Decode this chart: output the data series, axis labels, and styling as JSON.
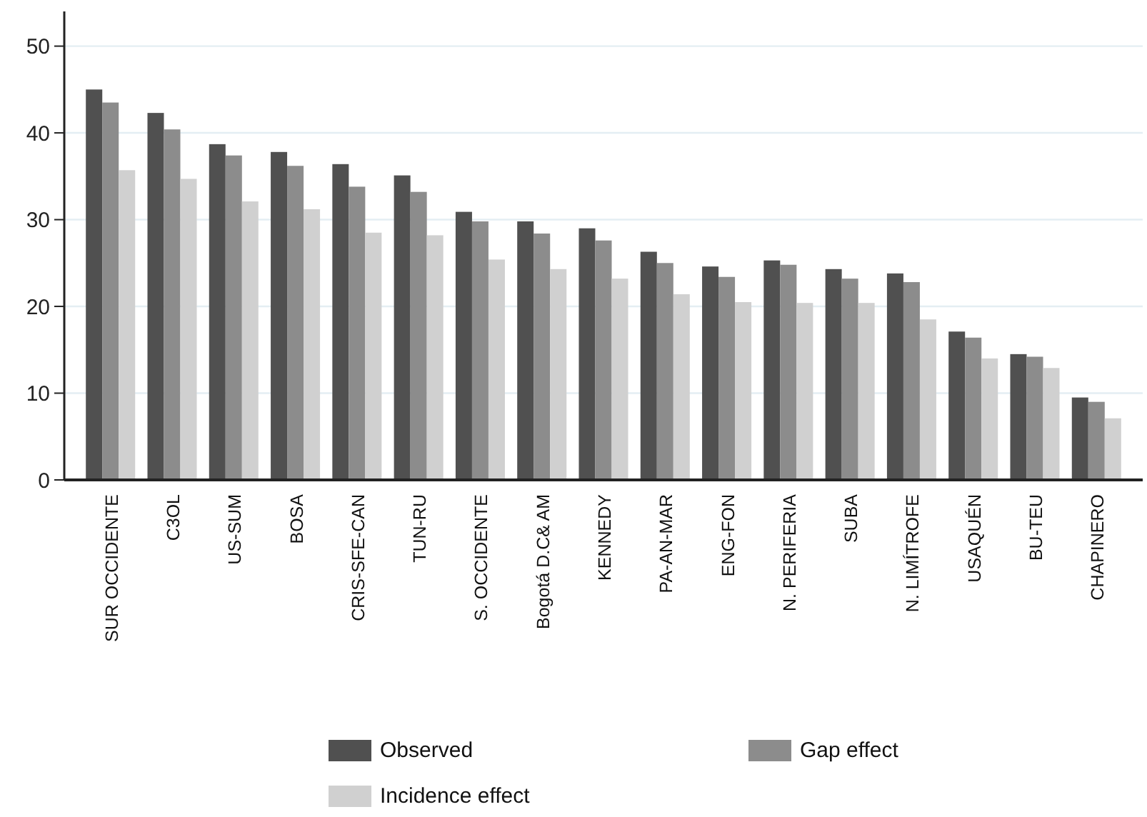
{
  "chart_data": {
    "type": "bar",
    "categories": [
      "SUR OCCIDENTE",
      "C3OL",
      "US-SUM",
      "BOSA",
      "CRIS-SFE-CAN",
      "TUN-RU",
      "S. OCCIDENTE",
      "Bogotá D.C& AM",
      "KENNEDY",
      "PA-AN-MAR",
      "ENG-FON",
      "N. PERIFERIA",
      "SUBA",
      "N. LIMÍTROFE",
      "USAQUÉN",
      "BU-TEU",
      "CHAPINERO"
    ],
    "series": [
      {
        "name": "Observed",
        "color": "#505050",
        "values": [
          45,
          42.3,
          38.7,
          37.8,
          36.4,
          35.1,
          30.9,
          29.8,
          29.0,
          26.3,
          24.6,
          25.3,
          24.3,
          23.8,
          17.1,
          14.5,
          9.5
        ]
      },
      {
        "name": "Gap effect",
        "color": "#8c8c8c",
        "values": [
          43.5,
          40.4,
          37.4,
          36.2,
          33.8,
          33.2,
          29.8,
          28.4,
          27.6,
          25.0,
          23.4,
          24.8,
          23.2,
          22.8,
          16.4,
          14.2,
          9.0
        ]
      },
      {
        "name": "Incidence effect",
        "color": "#d0d0d0",
        "values": [
          35.7,
          34.7,
          32.1,
          31.2,
          28.5,
          28.2,
          25.4,
          24.3,
          23.2,
          21.4,
          20.5,
          20.4,
          20.4,
          18.5,
          14.0,
          12.9,
          7.1
        ]
      }
    ],
    "ylim": [
      0,
      54
    ],
    "yticks": [
      0,
      10,
      20,
      30,
      40,
      50
    ],
    "grid": "y",
    "legend": "bottom"
  }
}
